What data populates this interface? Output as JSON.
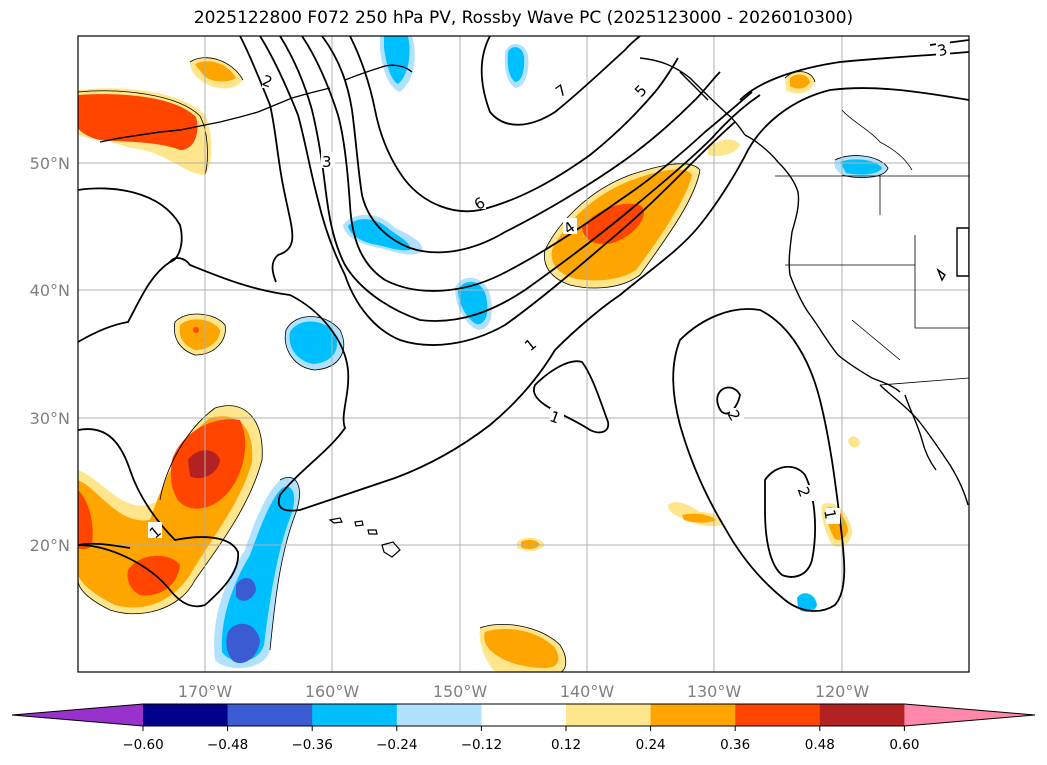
{
  "title": "2025122800 F072 250 hPa PV, Rossby Wave PC (2025123000 - 2026010300)",
  "map": {
    "lon_labels": [
      "170°W",
      "160°W",
      "150°W",
      "140°W",
      "130°W",
      "120°W"
    ],
    "lat_labels": [
      "50°N",
      "40°N",
      "30°N",
      "20°N"
    ],
    "grid": true
  },
  "contour_labels": [
    "2",
    "3",
    "7",
    "5",
    "3",
    "6",
    "4",
    "1",
    "1",
    "2",
    "2",
    "1",
    "1"
  ],
  "colorbar": {
    "ticks": [
      "−0.60",
      "−0.48",
      "−0.36",
      "−0.24",
      "−0.12",
      "0.12",
      "0.24",
      "0.36",
      "0.48",
      "0.60"
    ],
    "values": [
      -0.6,
      -0.48,
      -0.36,
      -0.24,
      -0.12,
      0.12,
      0.24,
      0.36,
      0.48,
      0.6
    ],
    "colors": [
      "#9932cc",
      "#00008b",
      "#3a5bd1",
      "#00bfff",
      "#b0e2ff",
      "#ffffff",
      "#ffe68c",
      "#ffa500",
      "#ff4500",
      "#b22222",
      "#ff88aa"
    ],
    "extend": "both"
  }
}
